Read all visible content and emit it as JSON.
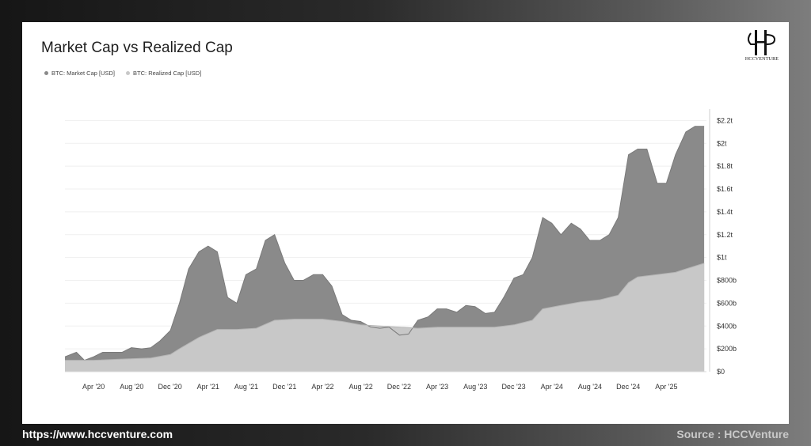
{
  "footer": {
    "url": "https://www.hccventure.com",
    "source": "Source : HCCVenture"
  },
  "logo": {
    "text": "HCCVENTURE"
  },
  "chart_data": {
    "type": "area",
    "title": "Market Cap vs Realized Cap",
    "xlabel": "",
    "ylabel": "",
    "legend_position": "top-left",
    "grid": true,
    "y_axis_side": "right",
    "ylim": [
      0,
      2.3
    ],
    "y_unit": "trillion USD",
    "x_range": [
      "2020-01",
      "2025-07"
    ],
    "x_ticks": [
      {
        "label": "Apr '20",
        "x": 2020.25
      },
      {
        "label": "Aug '20",
        "x": 2020.583
      },
      {
        "label": "Dec '20",
        "x": 2020.917
      },
      {
        "label": "Apr '21",
        "x": 2021.25
      },
      {
        "label": "Aug '21",
        "x": 2021.583
      },
      {
        "label": "Dec '21",
        "x": 2021.917
      },
      {
        "label": "Apr '22",
        "x": 2022.25
      },
      {
        "label": "Aug '22",
        "x": 2022.583
      },
      {
        "label": "Dec '22",
        "x": 2022.917
      },
      {
        "label": "Apr '23",
        "x": 2023.25
      },
      {
        "label": "Aug '23",
        "x": 2023.583
      },
      {
        "label": "Dec '23",
        "x": 2023.917
      },
      {
        "label": "Apr '24",
        "x": 2024.25
      },
      {
        "label": "Aug '24",
        "x": 2024.583
      },
      {
        "label": "Dec '24",
        "x": 2024.917
      },
      {
        "label": "Apr '25",
        "x": 2025.25
      }
    ],
    "y_ticks": [
      {
        "label": "$0",
        "value": 0
      },
      {
        "label": "$200b",
        "value": 0.2
      },
      {
        "label": "$400b",
        "value": 0.4
      },
      {
        "label": "$600b",
        "value": 0.6
      },
      {
        "label": "$800b",
        "value": 0.8
      },
      {
        "label": "$1t",
        "value": 1.0
      },
      {
        "label": "$1.2t",
        "value": 1.2
      },
      {
        "label": "$1.4t",
        "value": 1.4
      },
      {
        "label": "$1.6t",
        "value": 1.6
      },
      {
        "label": "$1.8t",
        "value": 1.8
      },
      {
        "label": "$2t",
        "value": 2.0
      },
      {
        "label": "$2.2t",
        "value": 2.2
      }
    ],
    "series": [
      {
        "name": "BTC: Market Cap [USD]",
        "color": "#8a8a8a",
        "points": [
          [
            2020.0,
            0.13
          ],
          [
            2020.1,
            0.17
          ],
          [
            2020.17,
            0.1
          ],
          [
            2020.25,
            0.13
          ],
          [
            2020.33,
            0.17
          ],
          [
            2020.42,
            0.17
          ],
          [
            2020.5,
            0.17
          ],
          [
            2020.58,
            0.21
          ],
          [
            2020.67,
            0.2
          ],
          [
            2020.75,
            0.21
          ],
          [
            2020.83,
            0.27
          ],
          [
            2020.92,
            0.36
          ],
          [
            2021.0,
            0.6
          ],
          [
            2021.08,
            0.9
          ],
          [
            2021.17,
            1.05
          ],
          [
            2021.25,
            1.1
          ],
          [
            2021.33,
            1.05
          ],
          [
            2021.42,
            0.65
          ],
          [
            2021.5,
            0.6
          ],
          [
            2021.58,
            0.85
          ],
          [
            2021.67,
            0.9
          ],
          [
            2021.75,
            1.15
          ],
          [
            2021.83,
            1.2
          ],
          [
            2021.92,
            0.95
          ],
          [
            2022.0,
            0.8
          ],
          [
            2022.08,
            0.8
          ],
          [
            2022.17,
            0.85
          ],
          [
            2022.25,
            0.85
          ],
          [
            2022.33,
            0.75
          ],
          [
            2022.42,
            0.5
          ],
          [
            2022.5,
            0.45
          ],
          [
            2022.58,
            0.44
          ],
          [
            2022.67,
            0.39
          ],
          [
            2022.75,
            0.38
          ],
          [
            2022.83,
            0.39
          ],
          [
            2022.92,
            0.32
          ],
          [
            2023.0,
            0.33
          ],
          [
            2023.08,
            0.45
          ],
          [
            2023.17,
            0.48
          ],
          [
            2023.25,
            0.55
          ],
          [
            2023.33,
            0.55
          ],
          [
            2023.42,
            0.52
          ],
          [
            2023.5,
            0.58
          ],
          [
            2023.58,
            0.57
          ],
          [
            2023.67,
            0.51
          ],
          [
            2023.75,
            0.52
          ],
          [
            2023.83,
            0.65
          ],
          [
            2023.92,
            0.82
          ],
          [
            2024.0,
            0.85
          ],
          [
            2024.08,
            1.0
          ],
          [
            2024.17,
            1.35
          ],
          [
            2024.25,
            1.3
          ],
          [
            2024.33,
            1.2
          ],
          [
            2024.42,
            1.3
          ],
          [
            2024.5,
            1.25
          ],
          [
            2024.58,
            1.15
          ],
          [
            2024.67,
            1.15
          ],
          [
            2024.75,
            1.2
          ],
          [
            2024.83,
            1.35
          ],
          [
            2024.92,
            1.9
          ],
          [
            2025.0,
            1.95
          ],
          [
            2025.08,
            1.95
          ],
          [
            2025.17,
            1.65
          ],
          [
            2025.25,
            1.65
          ],
          [
            2025.33,
            1.9
          ],
          [
            2025.42,
            2.1
          ],
          [
            2025.5,
            2.15
          ],
          [
            2025.58,
            2.15
          ]
        ]
      },
      {
        "name": "BTC: Realized Cap [USD]",
        "color": "#c8c8c8",
        "points": [
          [
            2020.0,
            0.1
          ],
          [
            2020.25,
            0.1
          ],
          [
            2020.5,
            0.11
          ],
          [
            2020.75,
            0.12
          ],
          [
            2020.92,
            0.15
          ],
          [
            2021.0,
            0.2
          ],
          [
            2021.17,
            0.3
          ],
          [
            2021.33,
            0.37
          ],
          [
            2021.5,
            0.37
          ],
          [
            2021.67,
            0.38
          ],
          [
            2021.83,
            0.45
          ],
          [
            2022.0,
            0.46
          ],
          [
            2022.25,
            0.46
          ],
          [
            2022.42,
            0.44
          ],
          [
            2022.58,
            0.41
          ],
          [
            2022.75,
            0.4
          ],
          [
            2022.92,
            0.39
          ],
          [
            2023.08,
            0.38
          ],
          [
            2023.25,
            0.39
          ],
          [
            2023.5,
            0.39
          ],
          [
            2023.75,
            0.39
          ],
          [
            2023.92,
            0.41
          ],
          [
            2024.08,
            0.45
          ],
          [
            2024.17,
            0.55
          ],
          [
            2024.33,
            0.58
          ],
          [
            2024.5,
            0.61
          ],
          [
            2024.67,
            0.63
          ],
          [
            2024.83,
            0.67
          ],
          [
            2024.92,
            0.78
          ],
          [
            2025.0,
            0.83
          ],
          [
            2025.17,
            0.85
          ],
          [
            2025.33,
            0.87
          ],
          [
            2025.42,
            0.9
          ],
          [
            2025.58,
            0.95
          ]
        ]
      }
    ]
  }
}
